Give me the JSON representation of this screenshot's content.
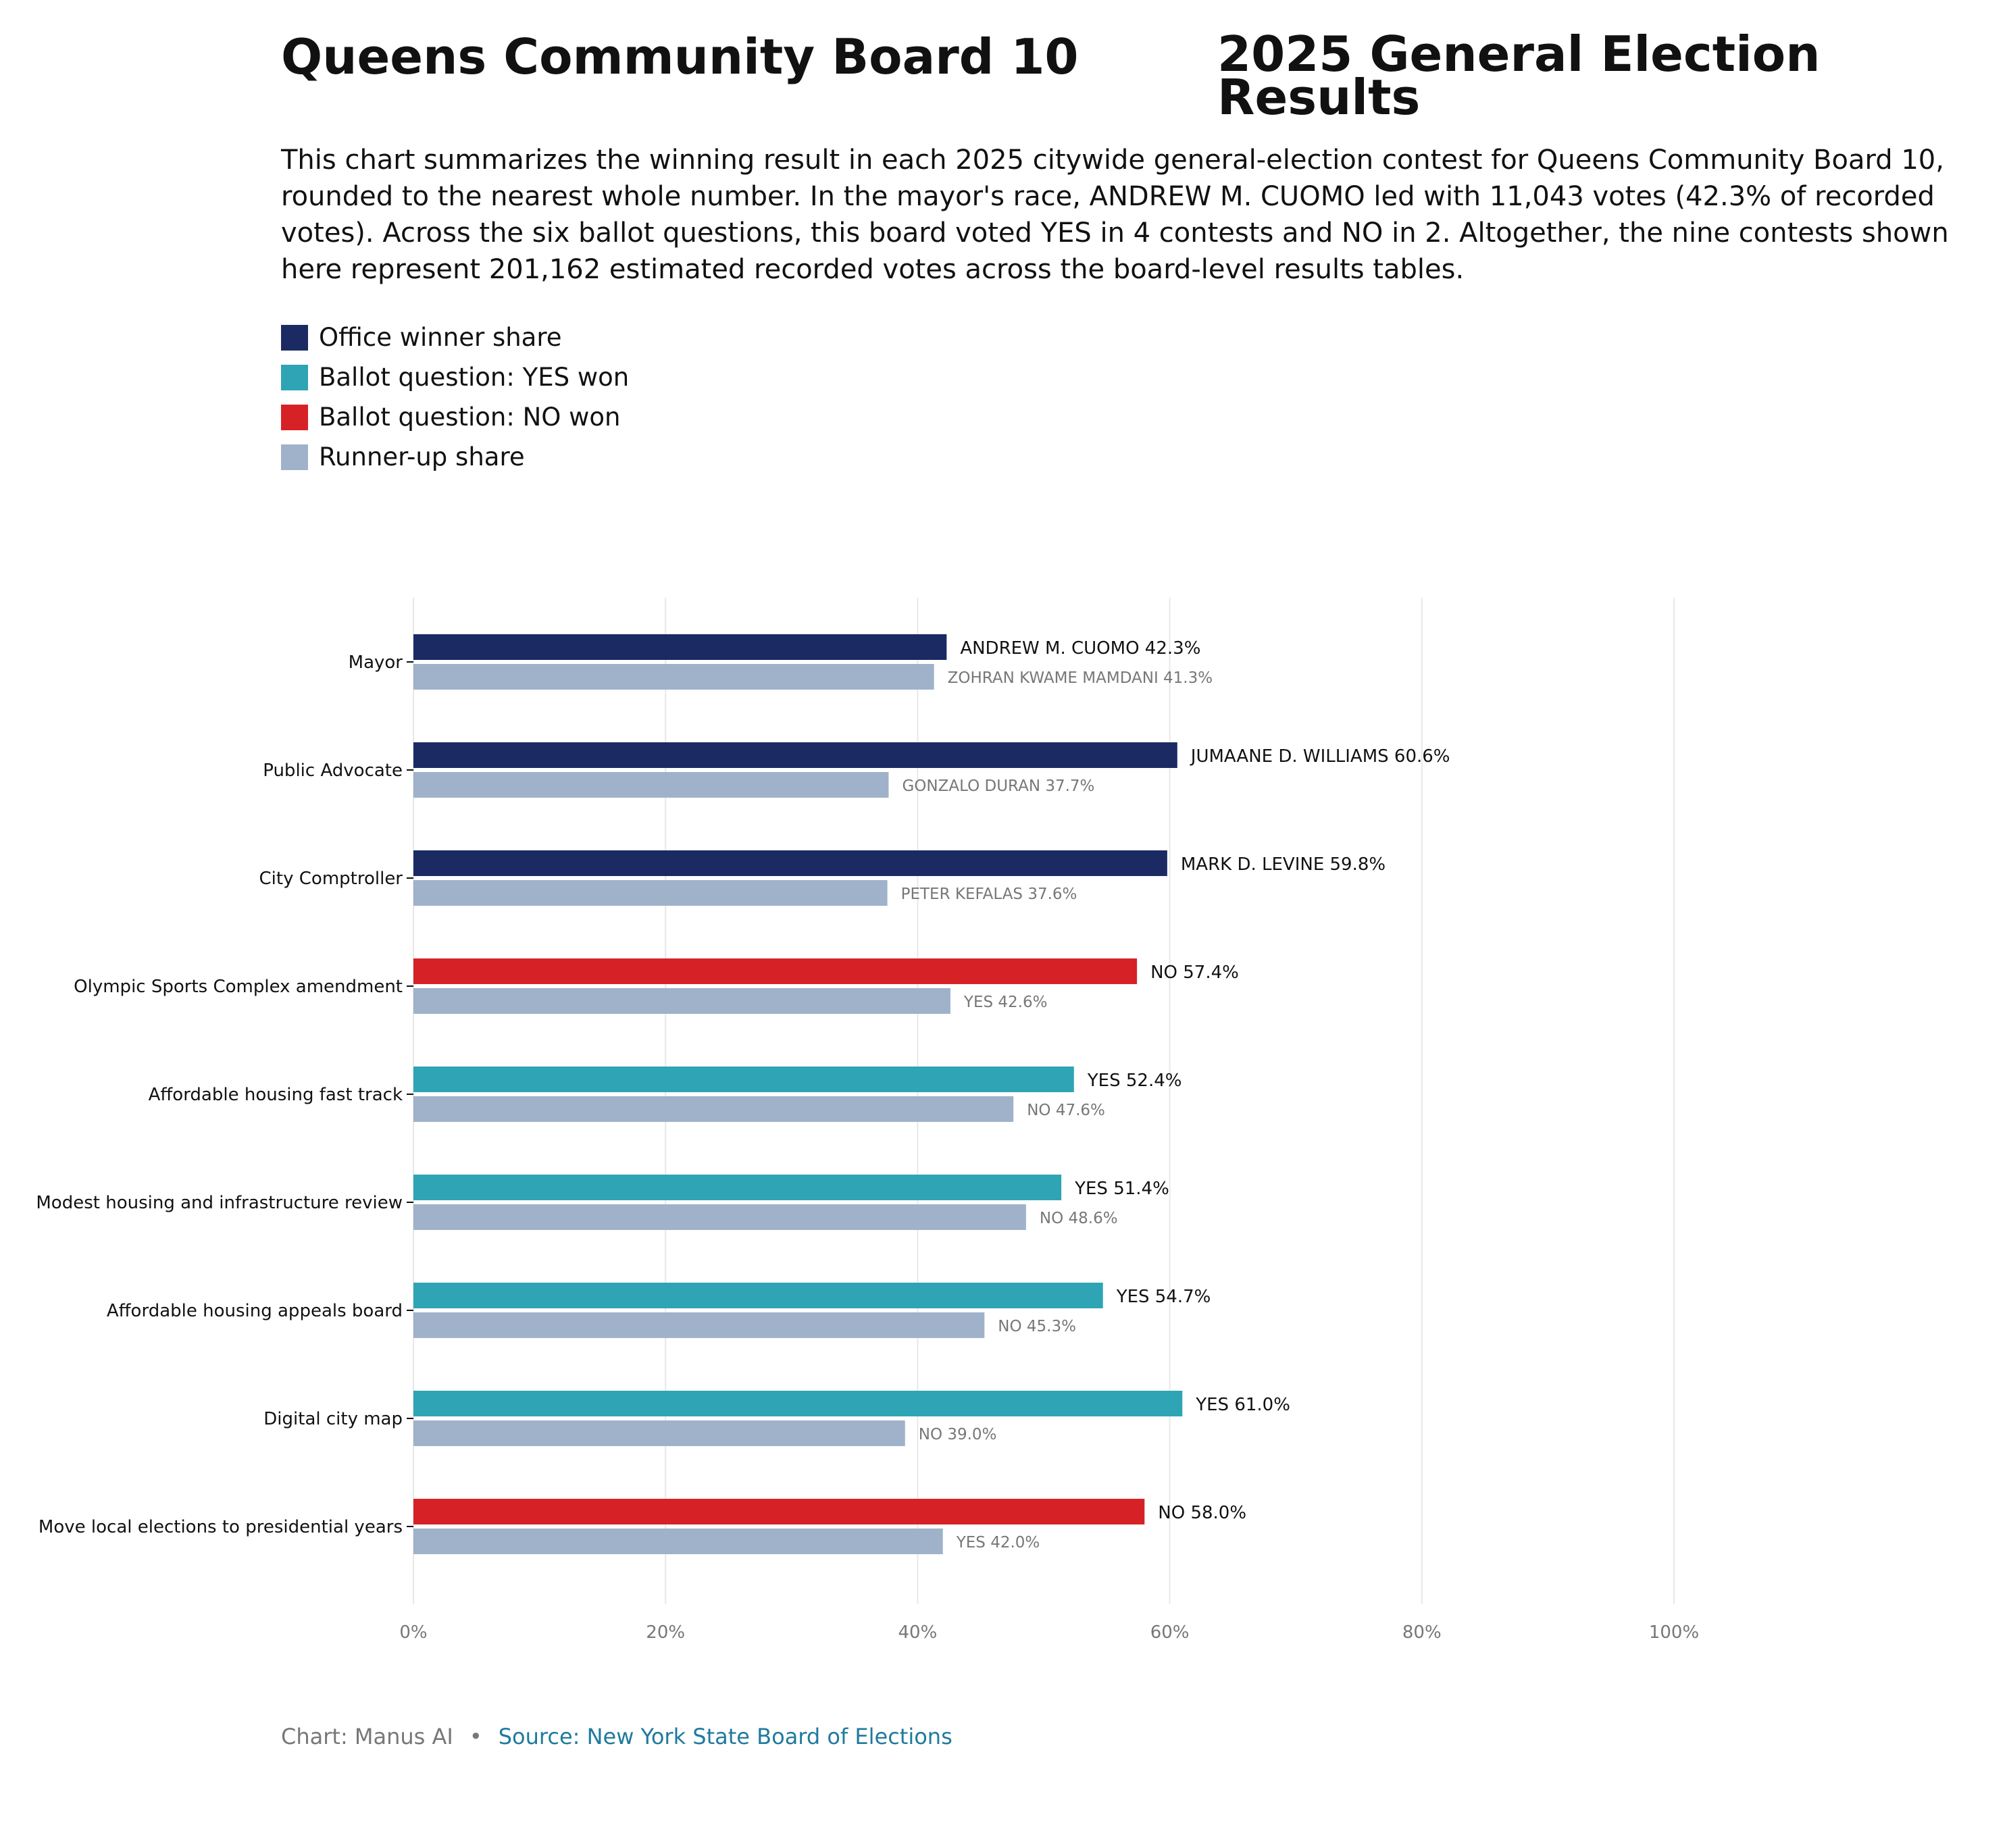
{
  "title_left": "Queens Community Board 10",
  "title_right": "2025 General Election Results",
  "subtitle": "This chart summarizes the winning result in each 2025 citywide general-election contest for Queens Community Board 10, rounded to the nearest whole number. In the mayor's race, ANDREW M. CUOMO led with 11,043 votes (42.3% of recorded votes). Across the six ballot questions, this board voted YES in 4 contests and NO in 2. Altogether, the nine contests shown here represent 201,162 estimated recorded votes across the board-level results tables.",
  "legend": [
    {
      "label": "Office winner share",
      "color": "#1b2a63"
    },
    {
      "label": "Ballot question: YES won",
      "color": "#2ea4b5"
    },
    {
      "label": "Ballot question: NO won",
      "color": "#d62226"
    },
    {
      "label": "Runner-up share",
      "color": "#9fb2c9"
    }
  ],
  "colors": {
    "office_winner": "#1b2a63",
    "yes_won": "#2ea4b5",
    "no_won": "#d62226",
    "runner_up": "#9fb2c9",
    "grid": "#e8e8e8",
    "tick_text": "#777777"
  },
  "chart_data": {
    "type": "bar",
    "orientation": "horizontal",
    "categories": [
      "Mayor",
      "Public Advocate",
      "City Comptroller",
      "Olympic Sports Complex amendment",
      "Affordable housing fast track",
      "Modest housing and infrastructure review",
      "Affordable housing appeals board",
      "Digital city map",
      "Move local elections to presidential years"
    ],
    "series": [
      {
        "name": "Winner share",
        "values": [
          42.3,
          60.6,
          59.8,
          57.4,
          52.4,
          51.4,
          54.7,
          61.0,
          58.0
        ]
      },
      {
        "name": "Runner-up share",
        "values": [
          41.3,
          37.7,
          37.6,
          42.6,
          47.6,
          48.6,
          45.3,
          39.0,
          42.0
        ]
      }
    ],
    "winner_kind": [
      "office",
      "office",
      "office",
      "no",
      "yes",
      "yes",
      "yes",
      "yes",
      "no"
    ],
    "winner_labels": [
      "ANDREW M. CUOMO 42.3%",
      "JUMAANE D. WILLIAMS 60.6%",
      "MARK D. LEVINE 59.8%",
      "NO 57.4%",
      "YES 52.4%",
      "YES 51.4%",
      "YES 54.7%",
      "YES 61.0%",
      "NO 58.0%"
    ],
    "runner_labels": [
      "ZOHRAN KWAME MAMDANI 41.3%",
      "GONZALO DURAN 37.7%",
      "PETER KEFALAS 37.6%",
      "YES 42.6%",
      "NO 47.6%",
      "NO 48.6%",
      "NO 45.3%",
      "NO 39.0%",
      "YES 42.0%"
    ],
    "xticks": [
      "0%",
      "20%",
      "40%",
      "60%",
      "80%",
      "100%"
    ],
    "xlim": [
      0,
      100
    ],
    "grid": true
  },
  "footer": {
    "credit": "Chart: Manus AI",
    "separator": "•",
    "source": "Source: New York State Board of Elections"
  }
}
